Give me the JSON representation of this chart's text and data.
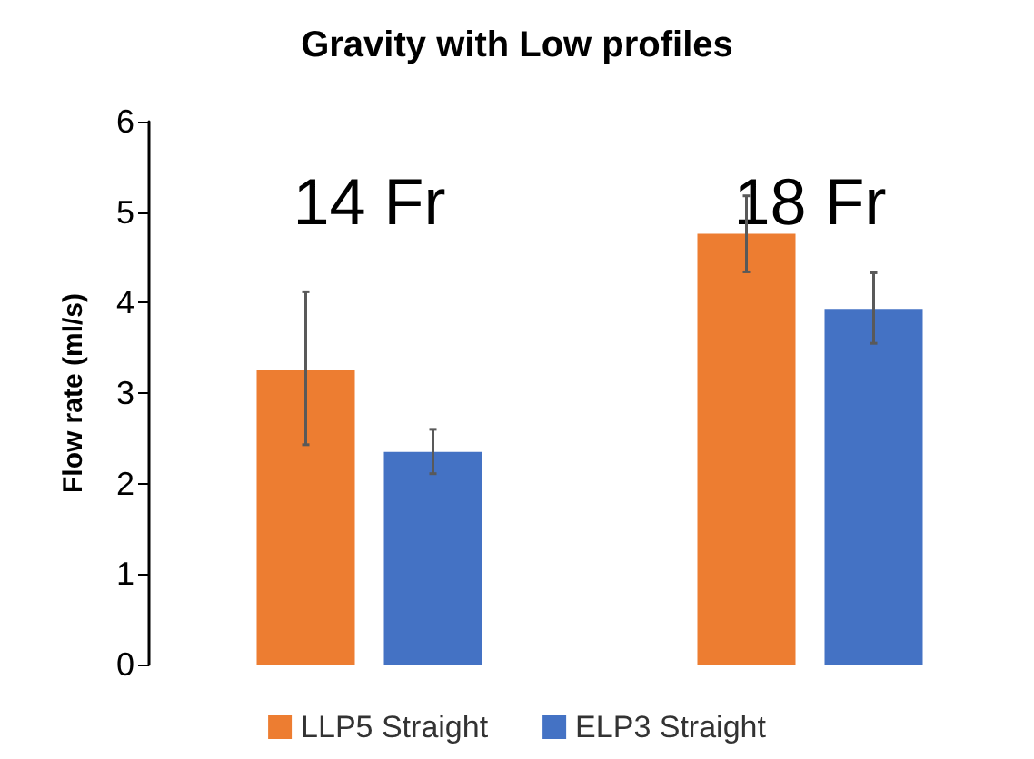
{
  "chart_data": {
    "type": "bar",
    "title": "Gravity with Low profiles",
    "ylabel": "Flow rate (ml/s)",
    "categories": [
      "14 Fr",
      "18 Fr"
    ],
    "series": [
      {
        "name": "LLP5 Straight",
        "color": "#ed7d31",
        "values": [
          3.25,
          4.76
        ],
        "errors": [
          [
            2.43,
            4.12
          ],
          [
            4.34,
            5.18
          ]
        ]
      },
      {
        "name": "ELP3 Straight",
        "color": "#4472c4",
        "values": [
          2.35,
          3.93
        ],
        "errors": [
          [
            2.11,
            2.6
          ],
          [
            3.55,
            4.33
          ]
        ]
      }
    ],
    "ylim": [
      0,
      6
    ],
    "yticks": [
      0,
      1,
      2,
      3,
      4,
      5,
      6
    ],
    "grid": false,
    "legend": "bottom"
  }
}
